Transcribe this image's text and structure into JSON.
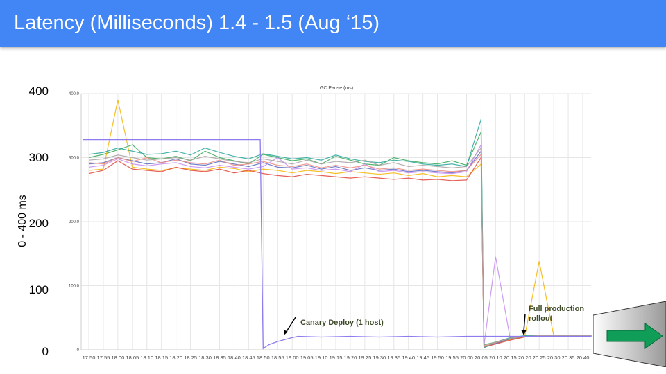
{
  "slide": {
    "title": "Latency (Milliseconds) 1.4 - 1.5 (Aug ‘15)",
    "y_axis_label": "0 - 400 ms",
    "y_labels": [
      "400",
      "300",
      "200",
      "100",
      "0"
    ]
  },
  "chart_data": {
    "type": "line",
    "title": "GC Pause (ms)",
    "ylabel": "0 - 400 ms",
    "ylim": [
      0,
      400
    ],
    "y_ticks": [
      "400.0",
      "300.0",
      "200.0",
      "100.0",
      "0"
    ],
    "x_unit": "minutes since 17:50",
    "x_ticks": [
      "17:50",
      "17:55",
      "18:00",
      "18:05",
      "18:10",
      "18:15",
      "18:20",
      "18:25",
      "18:30",
      "18:35",
      "18:40",
      "18:45",
      "18:50",
      "18:55",
      "19:00",
      "19:05",
      "19:10",
      "19:15",
      "19:20",
      "19:25",
      "19:30",
      "19:35",
      "19:40",
      "19:45",
      "19:50",
      "19:55",
      "20:00",
      "20:05",
      "20:10",
      "20:15",
      "20:20",
      "20:25",
      "20:30",
      "20:35",
      "20:40"
    ],
    "grid": true,
    "annotations": [
      {
        "text": "Canary Deploy (1 host)",
        "x": 70
      },
      {
        "text": "Full production",
        "text2": "rollout",
        "x": 150
      }
    ],
    "old_x": [
      0,
      5,
      10,
      15,
      20,
      25,
      30,
      35,
      40,
      45,
      50,
      55,
      60,
      65,
      70,
      75,
      80,
      85,
      90,
      95,
      100,
      105,
      110,
      115,
      120,
      125,
      130,
      135,
      136,
      140,
      145,
      150,
      155,
      160,
      165,
      170,
      173
    ],
    "series": [
      {
        "name": "green",
        "color": "#34a853",
        "values": [
          300,
          305,
          312,
          320,
          300,
          298,
          302,
          295,
          310,
          300,
          295,
          290,
          305,
          300,
          295,
          298,
          290,
          302,
          296,
          290,
          288,
          300,
          295,
          292,
          290,
          295,
          288,
          340,
          8,
          12,
          18,
          22,
          22,
          22,
          22,
          22,
          22
        ]
      },
      {
        "name": "orange",
        "color": "#f4b400",
        "values": [
          280,
          282,
          390,
          285,
          282,
          280,
          284,
          282,
          280,
          285,
          283,
          278,
          282,
          280,
          276,
          280,
          278,
          275,
          278,
          276,
          274,
          276,
          272,
          275,
          270,
          272,
          270,
          290,
          6,
          10,
          16,
          20,
          138,
          22,
          21,
          22,
          22
        ]
      },
      {
        "name": "red",
        "color": "#e0453a",
        "values": [
          275,
          280,
          295,
          282,
          280,
          278,
          285,
          280,
          278,
          282,
          276,
          280,
          275,
          272,
          270,
          274,
          272,
          270,
          268,
          270,
          268,
          266,
          268,
          265,
          266,
          264,
          265,
          300,
          4,
          9,
          15,
          20,
          21,
          21,
          22,
          21,
          21
        ]
      },
      {
        "name": "blue",
        "color": "#5c6bc0",
        "values": [
          290,
          292,
          300,
          295,
          290,
          292,
          298,
          290,
          288,
          294,
          290,
          286,
          292,
          285,
          284,
          288,
          282,
          286,
          280,
          284,
          280,
          282,
          278,
          280,
          278,
          276,
          280,
          310,
          5,
          10,
          17,
          21,
          22,
          22,
          23,
          22,
          22
        ]
      },
      {
        "name": "purple",
        "color": "#c58af0",
        "values": [
          285,
          288,
          298,
          290,
          287,
          290,
          292,
          286,
          284,
          288,
          285,
          282,
          286,
          300,
          282,
          284,
          280,
          282,
          278,
          290,
          278,
          280,
          276,
          278,
          276,
          275,
          278,
          320,
          6,
          145,
          18,
          21,
          22,
          22,
          22,
          22,
          22
        ]
      },
      {
        "name": "teal",
        "color": "#26a69a",
        "values": [
          305,
          308,
          315,
          310,
          305,
          306,
          310,
          304,
          315,
          308,
          302,
          298,
          306,
          302,
          298,
          300,
          296,
          304,
          298,
          294,
          292,
          296,
          294,
          290,
          288,
          290,
          286,
          360,
          3,
          12,
          19,
          22,
          22,
          22,
          22,
          23,
          22
        ]
      },
      {
        "name": "salmon",
        "color": "#ef8a80",
        "values": [
          292,
          290,
          300,
          294,
          300,
          292,
          296,
          292,
          290,
          296,
          288,
          290,
          294,
          288,
          286,
          290,
          284,
          288,
          284,
          288,
          282,
          284,
          280,
          282,
          280,
          278,
          280,
          305,
          5,
          11,
          18,
          21,
          22,
          22,
          22,
          22,
          22
        ]
      },
      {
        "name": "gray",
        "color": "#a8a0a0",
        "values": [
          296,
          298,
          304,
          300,
          296,
          298,
          300,
          296,
          302,
          298,
          294,
          292,
          298,
          294,
          290,
          296,
          290,
          294,
          292,
          296,
          288,
          292,
          286,
          288,
          286,
          284,
          286,
          315,
          7,
          12,
          18,
          21,
          22,
          22,
          22,
          22,
          22
        ]
      }
    ],
    "canary": {
      "name": "canary",
      "color": "#8c7cf0",
      "x": [
        -2,
        58,
        59,
        60,
        62,
        65,
        70,
        72,
        80,
        90,
        100,
        110,
        120,
        130,
        140,
        150,
        160,
        170,
        173
      ],
      "values": [
        328,
        328,
        328,
        2,
        8,
        13,
        19,
        21,
        20,
        21,
        20,
        21,
        20,
        21,
        21,
        21,
        21,
        21,
        21
      ]
    }
  }
}
